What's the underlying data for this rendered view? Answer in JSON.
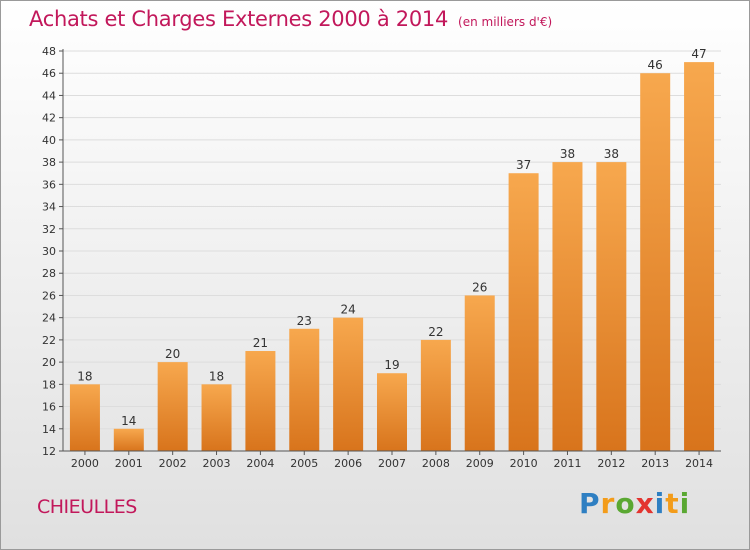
{
  "header": {
    "title": "Achats et Charges Externes 2000 à 2014",
    "subtitle": "(en milliers d'€)"
  },
  "footer": {
    "place": "CHIEULLES",
    "logo_letters": [
      {
        "ch": "P",
        "color": "#2e7fc2"
      },
      {
        "ch": "r",
        "color": "#f39c1a"
      },
      {
        "ch": "o",
        "color": "#5aa832"
      },
      {
        "ch": "x",
        "color": "#e3342f"
      },
      {
        "ch": "i",
        "color": "#2e7fc2"
      },
      {
        "ch": "t",
        "color": "#f39c1a"
      },
      {
        "ch": "i",
        "color": "#5aa832"
      }
    ]
  },
  "chart_data": {
    "type": "bar",
    "categories": [
      "2000",
      "2001",
      "2002",
      "2003",
      "2004",
      "2005",
      "2006",
      "2007",
      "2008",
      "2009",
      "2010",
      "2011",
      "2012",
      "2013",
      "2014"
    ],
    "values": [
      18,
      14,
      20,
      18,
      21,
      23,
      24,
      19,
      22,
      26,
      37,
      38,
      38,
      46,
      47
    ],
    "ylim": [
      12,
      48
    ],
    "yticks": [
      12,
      14,
      16,
      18,
      20,
      22,
      24,
      26,
      28,
      30,
      32,
      34,
      36,
      38,
      40,
      42,
      44,
      46,
      48
    ],
    "grid": true,
    "bar_color_top": "#f7a84e",
    "bar_color_bottom": "#d8741c",
    "xlabel": "",
    "ylabel": ""
  }
}
